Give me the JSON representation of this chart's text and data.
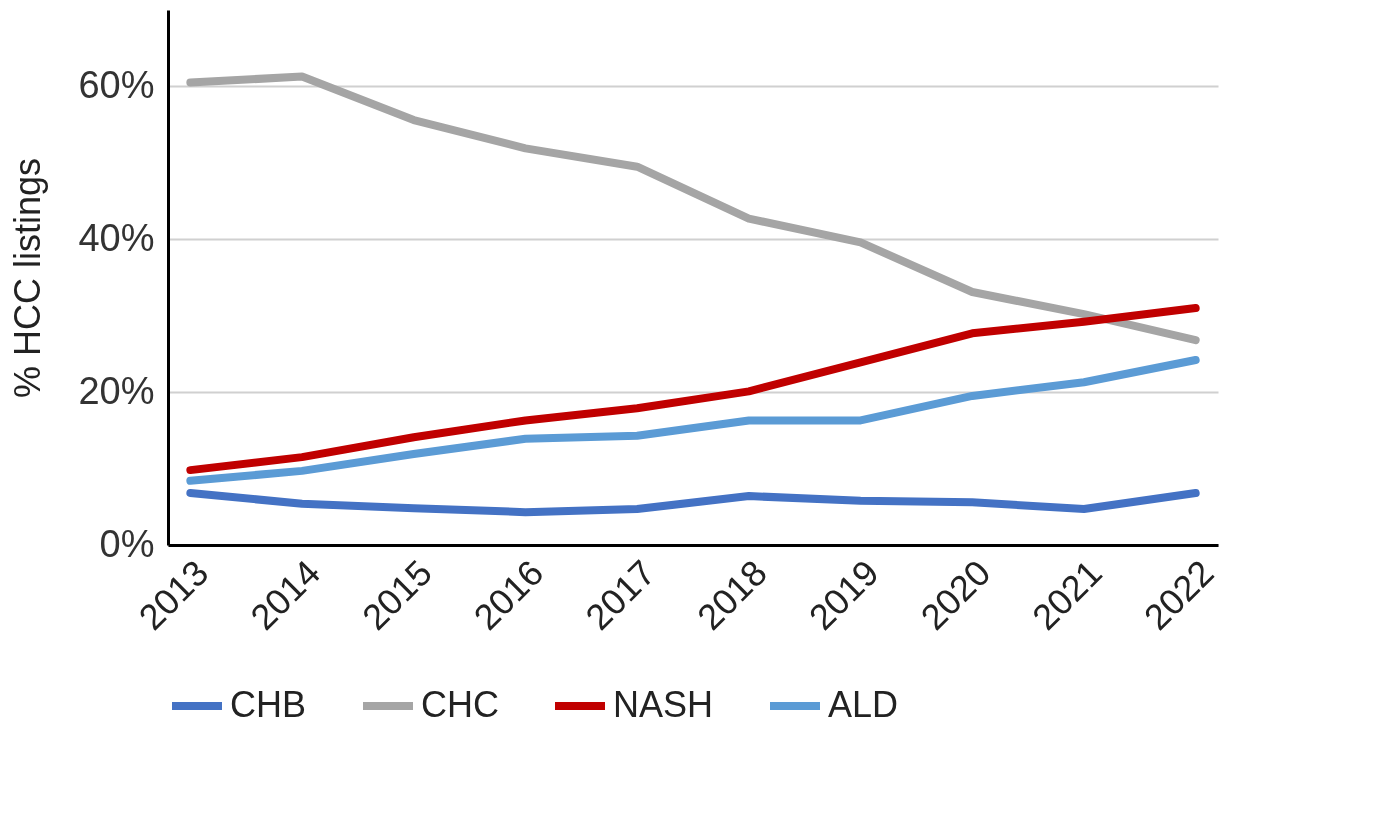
{
  "chart_data": {
    "type": "line",
    "ylabel": "% HCC listings",
    "categories": [
      "2013",
      "2014",
      "2015",
      "2016",
      "2017",
      "2018",
      "2019",
      "2020",
      "2021",
      "2022"
    ],
    "series": [
      {
        "name": "CHB",
        "color": "#4472c4",
        "values": [
          6.8,
          5.4,
          4.8,
          4.3,
          4.7,
          6.4,
          5.8,
          5.6,
          4.7,
          6.8
        ]
      },
      {
        "name": "CHC",
        "color": "#a5a5a5",
        "values": [
          60.5,
          61.3,
          55.6,
          51.9,
          49.5,
          42.7,
          39.6,
          33.1,
          30.2,
          26.8
        ]
      },
      {
        "name": "NASH",
        "color": "#c00000",
        "values": [
          9.8,
          11.5,
          14.1,
          16.3,
          17.9,
          20.1,
          23.9,
          27.7,
          29.2,
          31.0
        ]
      },
      {
        "name": "ALD",
        "color": "#5b9bd5",
        "values": [
          8.4,
          9.7,
          11.9,
          13.9,
          14.3,
          16.3,
          16.3,
          19.5,
          21.3,
          24.2
        ]
      }
    ],
    "ylim": [
      0,
      70
    ],
    "yticks": [
      {
        "value": 0,
        "label": "0%"
      },
      {
        "value": 20,
        "label": "20%"
      },
      {
        "value": 40,
        "label": "40%"
      },
      {
        "value": 60,
        "label": "60%"
      }
    ],
    "grid": "y",
    "legend": "bottom",
    "marker": "none",
    "line_style": "solid"
  }
}
